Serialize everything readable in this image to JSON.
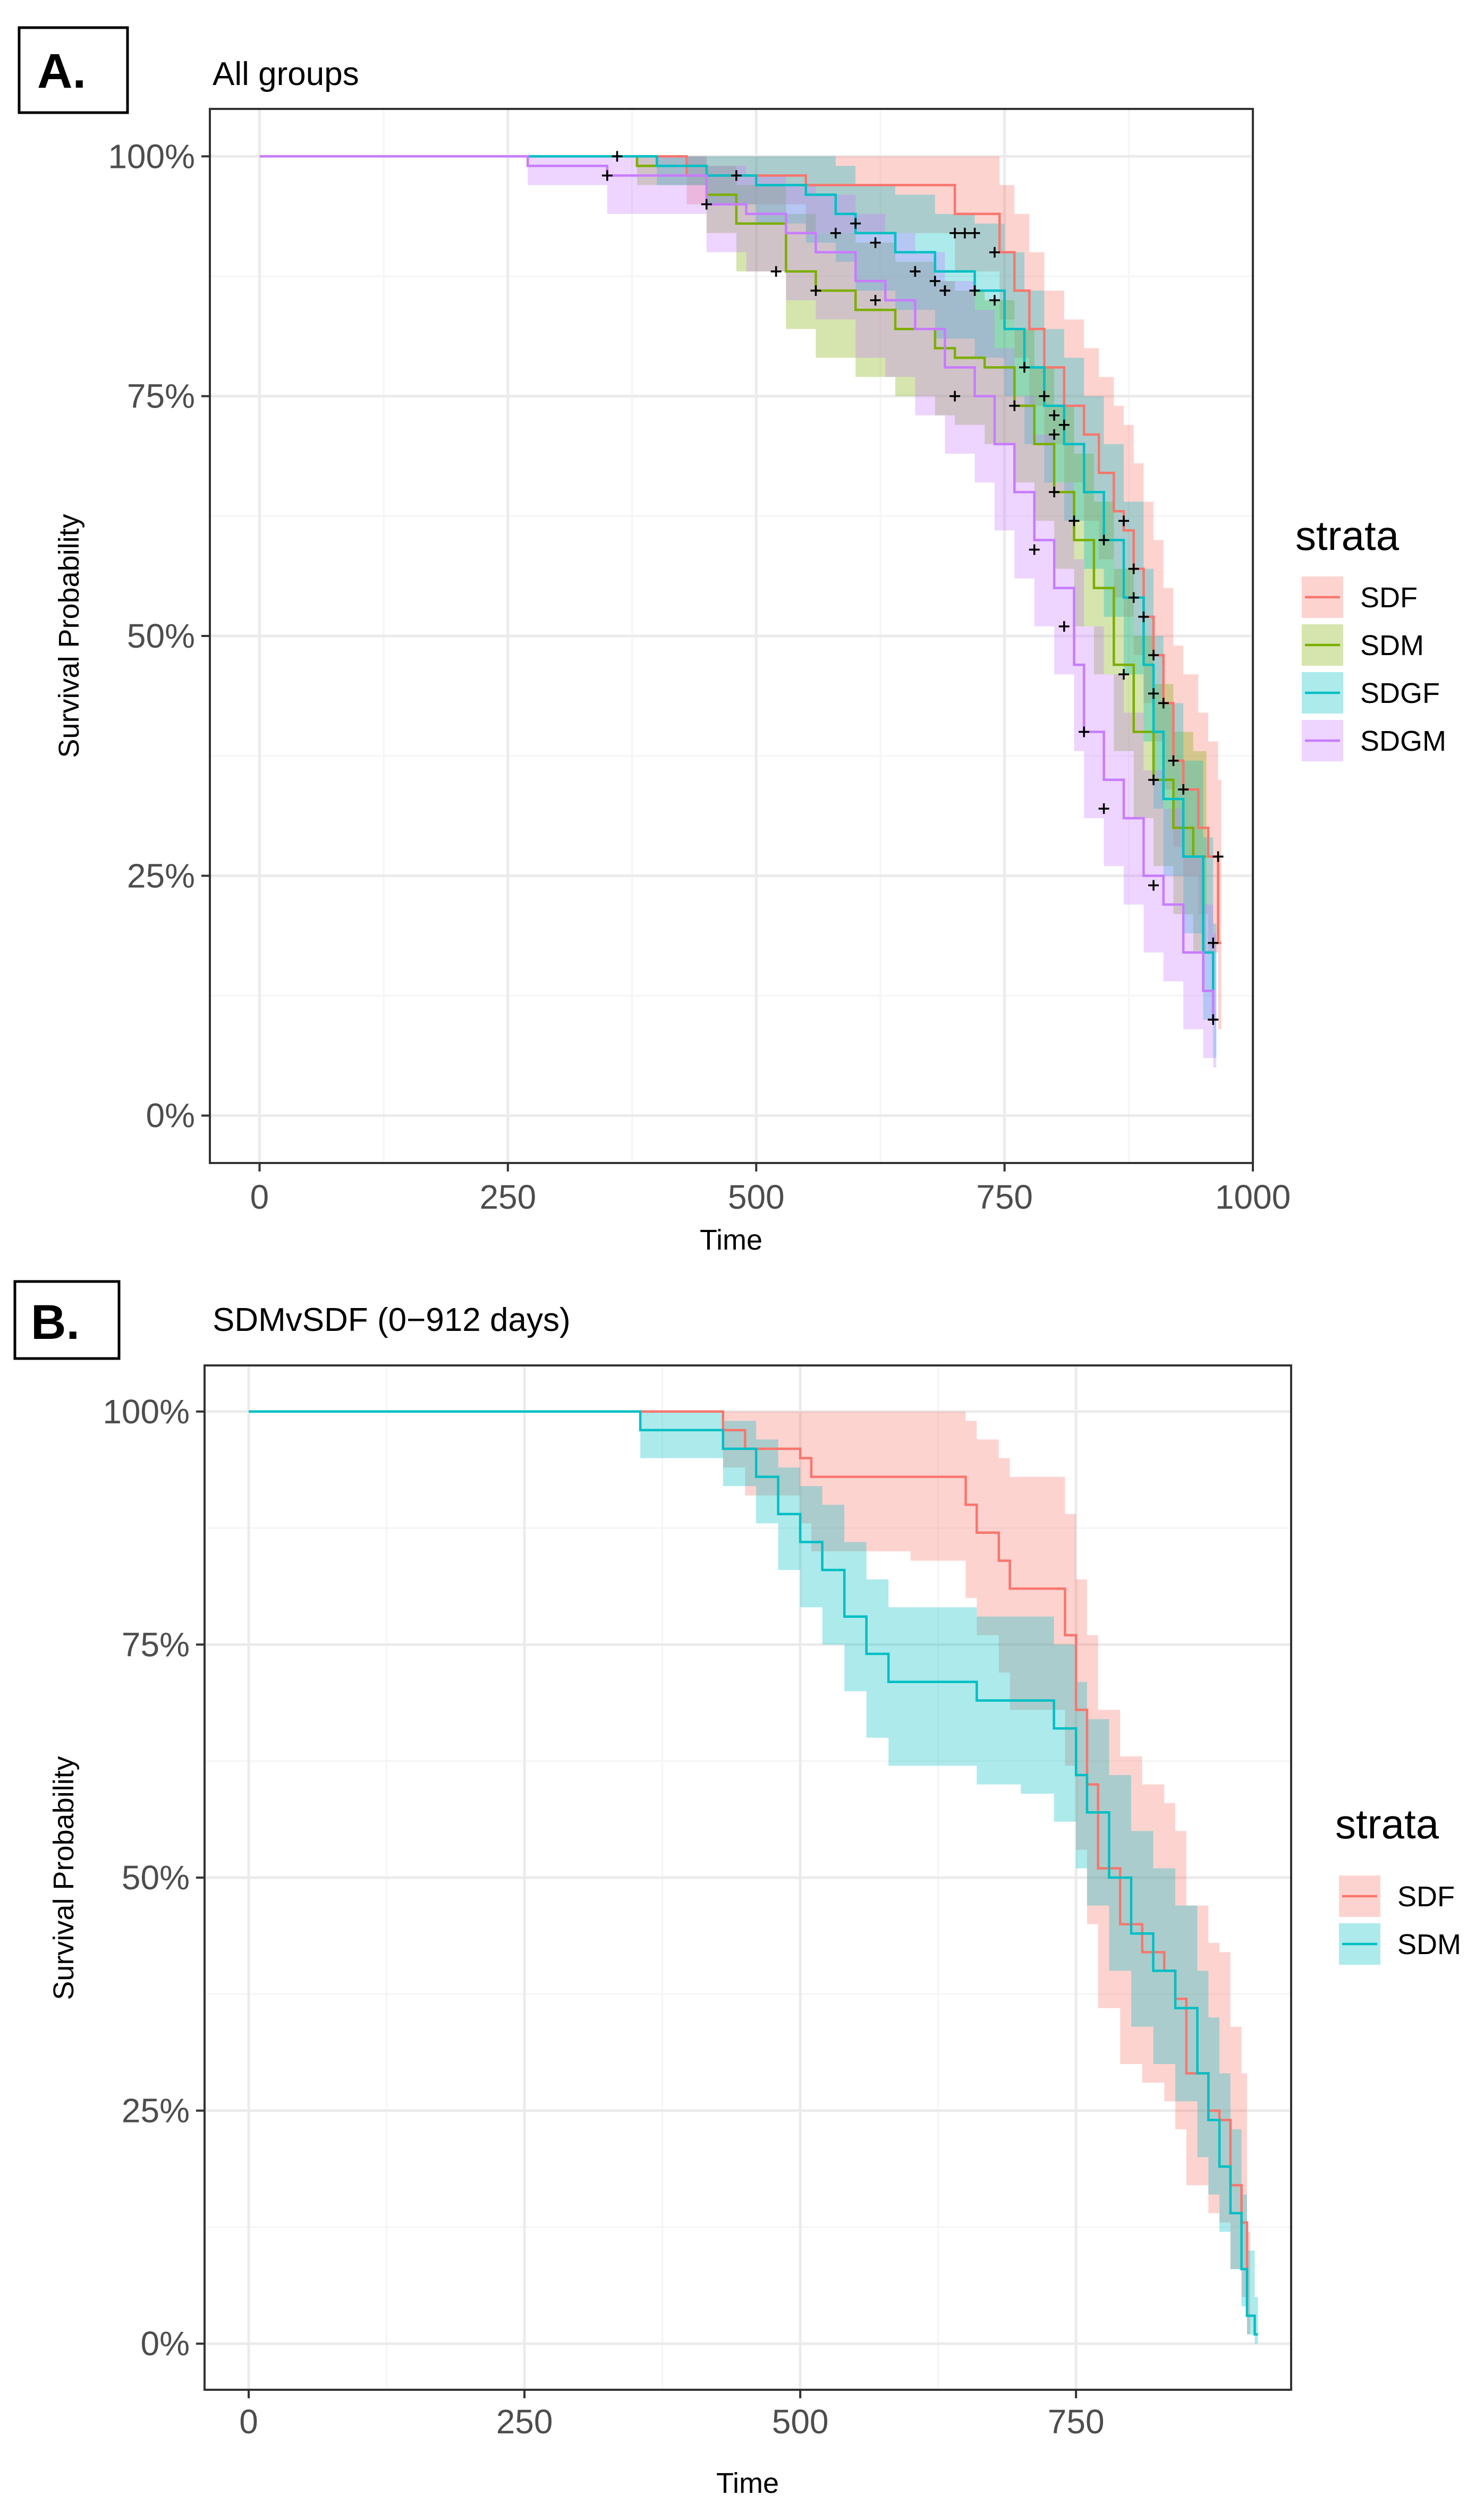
{
  "figure": {
    "colors": {
      "SDF": "#F8766D",
      "SDM": "#7CAE00",
      "SDGF": "#00BFC4",
      "SDGM": "#C77CFF",
      "grid_major": "#EBEBEB",
      "grid_minor": "#F5F5F5",
      "panel_border": "#333333",
      "tick_text": "#4D4D4D"
    }
  },
  "chart_data": [
    {
      "panel_label": "A.",
      "type": "line",
      "subtype": "kaplan-meier",
      "title": "All groups",
      "xlabel": "Time",
      "ylabel": "Survival Probability",
      "xlim": [
        -50,
        1000
      ],
      "ylim": [
        0,
        1
      ],
      "x_ticks": [
        0,
        250,
        500,
        750,
        1000
      ],
      "x_tick_labels": [
        "0",
        "250",
        "500",
        "750",
        "1000"
      ],
      "y_ticks": [
        0,
        0.25,
        0.5,
        0.75,
        1
      ],
      "y_tick_labels": [
        "0%",
        "25%",
        "50%",
        "75%",
        "100%"
      ],
      "grid": true,
      "legend": {
        "title": "strata",
        "position": "right",
        "entries": [
          "SDF",
          "SDM",
          "SDGF",
          "SDGM"
        ]
      },
      "series": [
        {
          "name": "SDF",
          "x": [
            0,
            430,
            550,
            580,
            700,
            745,
            760,
            775,
            790,
            810,
            830,
            845,
            860,
            870,
            880,
            890,
            900,
            910,
            920,
            930,
            945,
            955,
            965
          ],
          "y": [
            1,
            0.98,
            0.97,
            0.97,
            0.94,
            0.9,
            0.86,
            0.82,
            0.78,
            0.74,
            0.71,
            0.67,
            0.63,
            0.61,
            0.57,
            0.52,
            0.48,
            0.43,
            0.37,
            0.34,
            0.3,
            0.27,
            0.18
          ],
          "lower": [
            1,
            0.95,
            0.92,
            0.92,
            0.88,
            0.83,
            0.79,
            0.74,
            0.7,
            0.66,
            0.62,
            0.58,
            0.54,
            0.52,
            0.48,
            0.43,
            0.39,
            0.34,
            0.28,
            0.25,
            0.21,
            0.17,
            0.09
          ],
          "upper": [
            1,
            1,
            1,
            1,
            1,
            0.97,
            0.94,
            0.9,
            0.86,
            0.83,
            0.8,
            0.77,
            0.74,
            0.72,
            0.68,
            0.64,
            0.6,
            0.55,
            0.49,
            0.46,
            0.42,
            0.39,
            0.35
          ],
          "censor_x": [
            700,
            710,
            720,
            740,
            800,
            810,
            870,
            880,
            890,
            900,
            910,
            920,
            930,
            965
          ],
          "censor_y": [
            0.92,
            0.92,
            0.92,
            0.9,
            0.73,
            0.72,
            0.62,
            0.57,
            0.52,
            0.48,
            0.43,
            0.37,
            0.34,
            0.27
          ]
        },
        {
          "name": "SDM",
          "x": [
            0,
            380,
            450,
            480,
            530,
            560,
            600,
            640,
            680,
            700,
            730,
            760,
            780,
            800,
            820,
            840,
            860,
            880,
            900,
            920,
            940,
            950
          ],
          "y": [
            1,
            0.99,
            0.96,
            0.93,
            0.88,
            0.86,
            0.84,
            0.82,
            0.8,
            0.79,
            0.78,
            0.74,
            0.7,
            0.65,
            0.6,
            0.55,
            0.47,
            0.4,
            0.35,
            0.3,
            0.27,
            0.27
          ],
          "lower": [
            1,
            0.97,
            0.92,
            0.88,
            0.82,
            0.79,
            0.77,
            0.75,
            0.73,
            0.72,
            0.7,
            0.66,
            0.62,
            0.57,
            0.51,
            0.46,
            0.38,
            0.31,
            0.26,
            0.21,
            0.17,
            0.17
          ],
          "upper": [
            1,
            1,
            0.99,
            0.97,
            0.94,
            0.92,
            0.91,
            0.89,
            0.87,
            0.86,
            0.85,
            0.82,
            0.78,
            0.74,
            0.69,
            0.64,
            0.57,
            0.5,
            0.45,
            0.4,
            0.38,
            0.38
          ],
          "censor_x": [
            520,
            560,
            660,
            680,
            690,
            720,
            760,
            800,
            820,
            870,
            900
          ],
          "censor_y": [
            0.88,
            0.86,
            0.88,
            0.87,
            0.86,
            0.86,
            0.74,
            0.65,
            0.62,
            0.46,
            0.35
          ],
          "hidden": false
        },
        {
          "name": "SDGF",
          "x": [
            0,
            300,
            400,
            450,
            500,
            550,
            580,
            600,
            640,
            680,
            720,
            750,
            770,
            790,
            810,
            830,
            850,
            870,
            890,
            900,
            910,
            930,
            950,
            960
          ],
          "y": [
            1,
            1,
            0.99,
            0.98,
            0.97,
            0.96,
            0.94,
            0.92,
            0.9,
            0.88,
            0.86,
            0.82,
            0.78,
            0.74,
            0.7,
            0.65,
            0.6,
            0.54,
            0.47,
            0.4,
            0.33,
            0.27,
            0.17,
            0.1
          ],
          "lower": [
            1,
            1,
            0.97,
            0.95,
            0.93,
            0.91,
            0.89,
            0.86,
            0.84,
            0.81,
            0.79,
            0.75,
            0.7,
            0.66,
            0.62,
            0.57,
            0.52,
            0.46,
            0.39,
            0.32,
            0.25,
            0.19,
            0.1,
            0.06
          ],
          "upper": [
            1,
            1,
            1,
            1,
            1,
            1,
            0.99,
            0.97,
            0.96,
            0.94,
            0.93,
            0.9,
            0.86,
            0.82,
            0.79,
            0.75,
            0.7,
            0.64,
            0.57,
            0.5,
            0.43,
            0.37,
            0.29,
            0.2
          ],
          "censor_x": [
            360,
            600,
            620,
            660,
            690,
            740,
            770,
            790,
            800,
            850,
            880,
            900,
            960
          ],
          "censor_y": [
            1.0,
            0.93,
            0.91,
            0.88,
            0.86,
            0.85,
            0.78,
            0.75,
            0.71,
            0.6,
            0.54,
            0.44,
            0.18
          ]
        },
        {
          "name": "SDGM",
          "x": [
            0,
            270,
            350,
            450,
            490,
            530,
            560,
            600,
            630,
            660,
            690,
            720,
            740,
            760,
            780,
            800,
            820,
            830,
            850,
            870,
            890,
            910,
            930,
            950,
            960
          ],
          "y": [
            1,
            0.99,
            0.98,
            0.95,
            0.94,
            0.92,
            0.9,
            0.87,
            0.85,
            0.82,
            0.78,
            0.75,
            0.7,
            0.65,
            0.6,
            0.55,
            0.47,
            0.4,
            0.35,
            0.31,
            0.25,
            0.22,
            0.17,
            0.13,
            0.1
          ],
          "lower": [
            1,
            0.97,
            0.94,
            0.9,
            0.88,
            0.85,
            0.83,
            0.79,
            0.77,
            0.73,
            0.69,
            0.66,
            0.61,
            0.56,
            0.51,
            0.46,
            0.38,
            0.31,
            0.26,
            0.22,
            0.17,
            0.14,
            0.09,
            0.06,
            0.05
          ],
          "upper": [
            1,
            1,
            1,
            0.99,
            0.98,
            0.97,
            0.96,
            0.94,
            0.92,
            0.9,
            0.87,
            0.84,
            0.8,
            0.75,
            0.71,
            0.66,
            0.58,
            0.51,
            0.46,
            0.42,
            0.36,
            0.32,
            0.27,
            0.22,
            0.19
          ],
          "censor_x": [
            350,
            450,
            480,
            580,
            620,
            700,
            780,
            810,
            830,
            850,
            900,
            960
          ],
          "censor_y": [
            0.98,
            0.95,
            0.98,
            0.92,
            0.85,
            0.75,
            0.59,
            0.51,
            0.4,
            0.32,
            0.24,
            0.1
          ]
        }
      ]
    },
    {
      "panel_label": "B.",
      "type": "line",
      "subtype": "kaplan-meier",
      "title": "SDMvSDF (0−912 days)",
      "xlabel": "Time",
      "ylabel": "Survival Probability",
      "xlim": [
        -40,
        945
      ],
      "ylim": [
        0,
        1
      ],
      "x_ticks": [
        0,
        250,
        500,
        750
      ],
      "x_tick_labels": [
        "0",
        "250",
        "500",
        "750"
      ],
      "y_ticks": [
        0,
        0.25,
        0.5,
        0.75,
        1
      ],
      "y_tick_labels": [
        "0%",
        "25%",
        "50%",
        "75%",
        "100%"
      ],
      "grid": true,
      "legend": {
        "title": "strata",
        "position": "right",
        "entries": [
          "SDF",
          "SDM"
        ]
      },
      "series": [
        {
          "name": "SDF",
          "color_key": "SDF",
          "x": [
            0,
            360,
            430,
            450,
            500,
            510,
            540,
            600,
            630,
            650,
            660,
            680,
            690,
            730,
            740,
            750,
            760,
            770,
            790,
            810,
            830,
            840,
            850,
            870,
            880,
            890,
            900,
            905
          ],
          "y": [
            1,
            1,
            0.98,
            0.96,
            0.95,
            0.93,
            0.93,
            0.93,
            0.93,
            0.9,
            0.87,
            0.84,
            0.81,
            0.81,
            0.76,
            0.68,
            0.6,
            0.51,
            0.45,
            0.42,
            0.4,
            0.37,
            0.29,
            0.25,
            0.24,
            0.17,
            0.13,
            0.03
          ],
          "lower": [
            1,
            1,
            0.94,
            0.91,
            0.88,
            0.85,
            0.85,
            0.84,
            0.84,
            0.8,
            0.76,
            0.72,
            0.68,
            0.68,
            0.62,
            0.53,
            0.45,
            0.36,
            0.3,
            0.28,
            0.26,
            0.23,
            0.17,
            0.14,
            0.13,
            0.08,
            0.05,
            0.01
          ],
          "upper": [
            1,
            1,
            1,
            1,
            1,
            1,
            1,
            1,
            1,
            0.99,
            0.97,
            0.95,
            0.93,
            0.93,
            0.89,
            0.82,
            0.76,
            0.68,
            0.63,
            0.6,
            0.58,
            0.55,
            0.47,
            0.43,
            0.42,
            0.34,
            0.29,
            0.12
          ]
        },
        {
          "name": "SDM",
          "color_key": "SDGF",
          "x": [
            0,
            355,
            430,
            460,
            480,
            500,
            520,
            540,
            560,
            580,
            600,
            630,
            660,
            700,
            730,
            750,
            760,
            780,
            800,
            820,
            840,
            860,
            870,
            880,
            890,
            900,
            905,
            912
          ],
          "y": [
            1,
            0.98,
            0.96,
            0.93,
            0.89,
            0.86,
            0.83,
            0.78,
            0.74,
            0.71,
            0.71,
            0.71,
            0.69,
            0.69,
            0.66,
            0.61,
            0.57,
            0.5,
            0.44,
            0.4,
            0.36,
            0.29,
            0.24,
            0.19,
            0.14,
            0.08,
            0.03,
            0.01
          ],
          "lower": [
            1,
            0.95,
            0.92,
            0.88,
            0.83,
            0.79,
            0.75,
            0.7,
            0.65,
            0.62,
            0.62,
            0.62,
            0.6,
            0.59,
            0.56,
            0.51,
            0.47,
            0.4,
            0.34,
            0.3,
            0.26,
            0.2,
            0.16,
            0.12,
            0.08,
            0.04,
            0.01,
            0.0
          ],
          "upper": [
            1,
            1,
            0.99,
            0.97,
            0.94,
            0.92,
            0.9,
            0.86,
            0.82,
            0.79,
            0.79,
            0.79,
            0.78,
            0.78,
            0.75,
            0.71,
            0.67,
            0.61,
            0.55,
            0.51,
            0.47,
            0.4,
            0.35,
            0.29,
            0.23,
            0.16,
            0.1,
            0.05
          ]
        }
      ]
    }
  ]
}
